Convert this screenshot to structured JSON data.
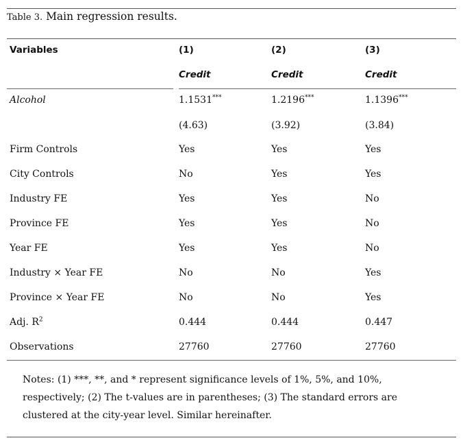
{
  "caption": {
    "label": "Table 3.",
    "text": "Main regression results."
  },
  "header": {
    "variables": "Variables",
    "columns": [
      "(1)",
      "(2)",
      "(3)"
    ],
    "dep_vars": [
      "Credit",
      "Credit",
      "Credit"
    ]
  },
  "rows": {
    "alcohol": {
      "label": "Alcohol",
      "coef": [
        "1.1531",
        "1.2196",
        "1.1396"
      ],
      "stars": [
        "***",
        "***",
        "***"
      ],
      "tvals": [
        "(4.63)",
        "(3.92)",
        "(3.84)"
      ]
    },
    "firm_controls": {
      "label": "Firm Controls",
      "values": [
        "Yes",
        "Yes",
        "Yes"
      ]
    },
    "city_controls": {
      "label": "City Controls",
      "values": [
        "No",
        "Yes",
        "Yes"
      ]
    },
    "industry_fe": {
      "label": "Industry FE",
      "values": [
        "Yes",
        "Yes",
        "No"
      ]
    },
    "province_fe": {
      "label": "Province FE",
      "values": [
        "Yes",
        "Yes",
        "No"
      ]
    },
    "year_fe": {
      "label": "Year FE",
      "values": [
        "Yes",
        "Yes",
        "No"
      ]
    },
    "industry_year_fe": {
      "label": "Industry × Year FE",
      "values": [
        "No",
        "No",
        "Yes"
      ]
    },
    "province_year_fe": {
      "label": "Province × Year FE",
      "values": [
        "No",
        "No",
        "Yes"
      ]
    },
    "adj_r2": {
      "label": "Adj. R",
      "label_sup": "2",
      "values": [
        "0.444",
        "0.444",
        "0.447"
      ]
    },
    "observations": {
      "label": "Observations",
      "values": [
        "27760",
        "27760",
        "27760"
      ]
    }
  },
  "notes": "Notes: (1) ***, **, and * represent significance levels of 1%, 5%, and 10%, respectively; (2) The t-values are in parentheses; (3) The standard errors are clustered at the city-year level. Similar hereinafter."
}
